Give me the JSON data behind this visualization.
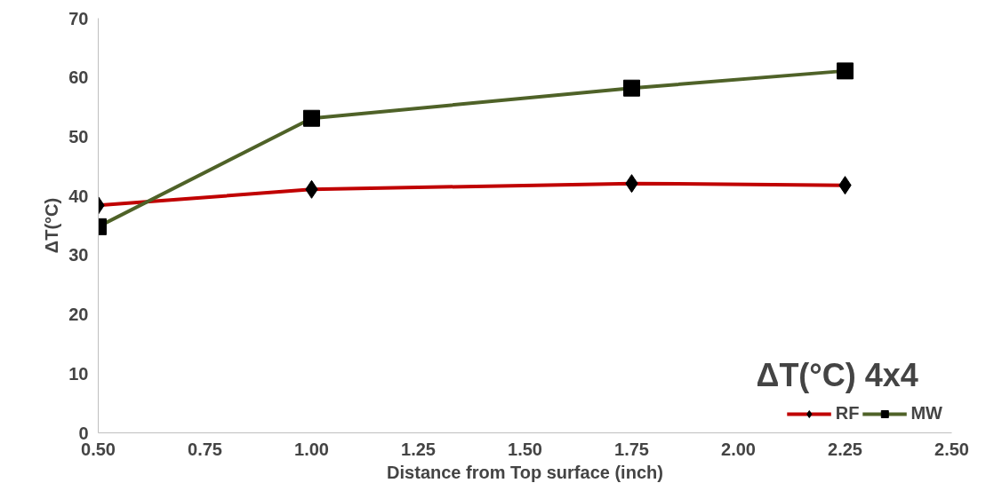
{
  "chart_data": {
    "type": "line",
    "title": "ΔT(°C)  4x4",
    "xlabel": "Distance from Top surface (inch)",
    "ylabel": "ΔT(°C)",
    "x": [
      0.5,
      1.0,
      1.75,
      2.25
    ],
    "series": [
      {
        "name": "RF",
        "color": "#c00000",
        "marker": "diamond",
        "values": [
          38.4,
          41.1,
          42.1,
          41.8
        ]
      },
      {
        "name": "MW",
        "color": "#4f6228",
        "marker": "square",
        "values": [
          34.8,
          53.1,
          58.2,
          61.1
        ]
      }
    ],
    "xlim": [
      0.5,
      2.5
    ],
    "xticks": [
      {
        "value": 0.5,
        "label": "0.50"
      },
      {
        "value": 0.75,
        "label": "0.75"
      },
      {
        "value": 1.0,
        "label": "1.00"
      },
      {
        "value": 1.25,
        "label": "1.25"
      },
      {
        "value": 1.5,
        "label": "1.50"
      },
      {
        "value": 1.75,
        "label": "1.75"
      },
      {
        "value": 2.0,
        "label": "2.00"
      },
      {
        "value": 2.25,
        "label": "2.25"
      },
      {
        "value": 2.5,
        "label": "2.50"
      }
    ],
    "ylim": [
      0,
      70
    ],
    "yticks": [
      0,
      10,
      20,
      30,
      40,
      50,
      60,
      70
    ],
    "grid": false,
    "legend": "bottom right",
    "line_style": "solid"
  }
}
